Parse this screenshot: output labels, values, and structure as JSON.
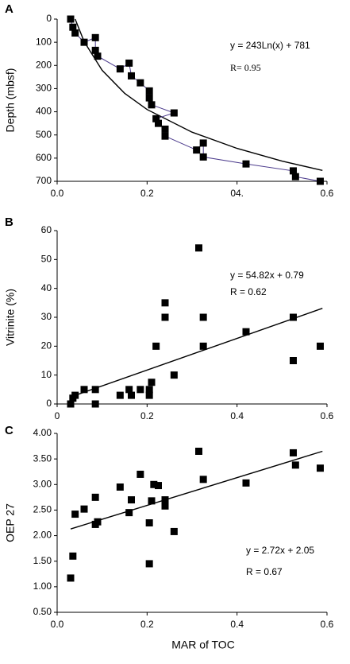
{
  "chart_data": [
    {
      "type": "scatter",
      "panel": "A",
      "ylabel": "Depth (mbsf)",
      "invert_y": true,
      "x": [
        0.03,
        0.035,
        0.04,
        0.06,
        0.085,
        0.085,
        0.09,
        0.14,
        0.16,
        0.165,
        0.185,
        0.205,
        0.205,
        0.21,
        0.26,
        0.22,
        0.225,
        0.24,
        0.24,
        0.31,
        0.325,
        0.325,
        0.42,
        0.525,
        0.53,
        0.585
      ],
      "values": [
        0,
        35,
        60,
        100,
        80,
        135,
        160,
        215,
        190,
        245,
        275,
        310,
        340,
        370,
        405,
        430,
        450,
        475,
        505,
        565,
        535,
        595,
        625,
        655,
        680,
        700
      ],
      "color": "#000000",
      "connect_color": "#4b3a8c",
      "fit": {
        "x": [
          0.04,
          0.06,
          0.1,
          0.15,
          0.2,
          0.3,
          0.4,
          0.5,
          0.59
        ],
        "values": [
          0,
          97,
          221,
          320,
          390,
          488,
          558,
          613,
          653
        ],
        "color": "#000000"
      },
      "annotations": [
        {
          "text": "y = 243Ln(x) + 781",
          "serif": false
        },
        {
          "text": "R= 0.95",
          "serif": true
        }
      ],
      "xlim": [
        0,
        0.6
      ],
      "ylim": [
        0,
        700
      ],
      "xticks": [
        {
          "value": 0,
          "label": "0.0"
        },
        0.2,
        {
          "value": 0.4,
          "label": "04."
        },
        0.6
      ],
      "yticks": [
        0,
        100,
        200,
        300,
        400,
        500,
        600,
        700
      ]
    },
    {
      "type": "scatter",
      "panel": "B",
      "ylabel": "Vitrinite (%)",
      "x": [
        0.03,
        0.035,
        0.04,
        0.06,
        0.085,
        0.085,
        0.14,
        0.16,
        0.165,
        0.185,
        0.205,
        0.205,
        0.21,
        0.22,
        0.24,
        0.24,
        0.26,
        0.315,
        0.325,
        0.325,
        0.42,
        0.525,
        0.525,
        0.585
      ],
      "values": [
        0,
        2,
        3,
        5,
        5,
        0,
        3,
        5,
        3,
        5,
        5,
        3,
        7.5,
        20,
        35,
        30,
        10,
        54,
        30,
        20,
        25,
        30,
        15,
        20
      ],
      "color": "#000000",
      "fit": {
        "x": [
          0.035,
          0.59
        ],
        "values": [
          2.7,
          33.1
        ],
        "color": "#000000"
      },
      "annotations": [
        {
          "text": "y = 54.82x + 0.79",
          "serif": false
        },
        {
          "text": "R = 0.62",
          "serif": false
        }
      ],
      "xlim": [
        0,
        0.6
      ],
      "ylim": [
        0,
        60
      ],
      "xticks": [
        0,
        0.2,
        0.4,
        0.6
      ],
      "yticks": [
        0,
        10,
        20,
        30,
        40,
        50,
        60
      ]
    },
    {
      "type": "scatter",
      "panel": "C",
      "ylabel": "OEP 27",
      "xlabel": "MAR of TOC",
      "x": [
        0.03,
        0.035,
        0.04,
        0.06,
        0.085,
        0.085,
        0.09,
        0.14,
        0.16,
        0.165,
        0.185,
        0.205,
        0.205,
        0.21,
        0.215,
        0.225,
        0.24,
        0.24,
        0.26,
        0.315,
        0.325,
        0.42,
        0.525,
        0.53,
        0.585
      ],
      "values": [
        1.17,
        1.6,
        2.42,
        2.52,
        2.75,
        2.22,
        2.27,
        2.95,
        2.45,
        2.7,
        3.2,
        2.25,
        1.45,
        2.68,
        3.0,
        2.98,
        2.7,
        2.58,
        2.08,
        3.65,
        3.1,
        3.03,
        3.62,
        3.38,
        3.32
      ],
      "color": "#000000",
      "fit": {
        "x": [
          0.03,
          0.59
        ],
        "values": [
          2.13,
          3.65
        ],
        "color": "#000000"
      },
      "annotations": [
        {
          "text": "y = 2.72x + 2.05",
          "serif": false
        },
        {
          "text": "R = 0.67",
          "serif": false
        }
      ],
      "xlim": [
        0,
        0.6
      ],
      "ylim": [
        0.5,
        4.0
      ],
      "xticks": [
        {
          "value": 0,
          "label": "0.0"
        },
        0.2,
        0.4,
        0.6
      ],
      "yticks": [
        {
          "value": 0.5,
          "label": "0.50"
        },
        {
          "value": 1.0,
          "label": "1.00"
        },
        {
          "value": 1.5,
          "label": "1.50"
        },
        {
          "value": 2.0,
          "label": "2.00"
        },
        {
          "value": 2.5,
          "label": "2.50"
        },
        {
          "value": 3.0,
          "label": "3.00"
        },
        {
          "value": 3.5,
          "label": "3.50"
        },
        {
          "value": 4.0,
          "label": "4.00"
        }
      ]
    }
  ]
}
